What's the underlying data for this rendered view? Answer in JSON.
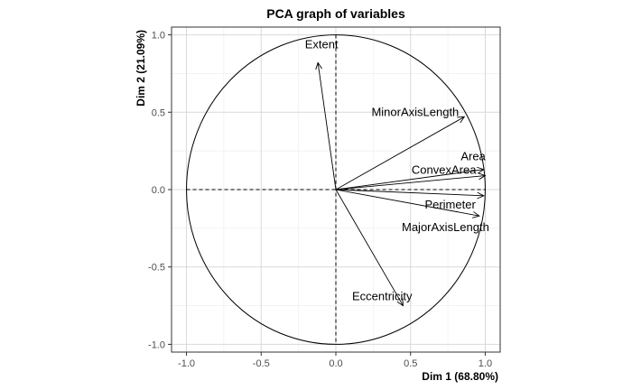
{
  "chart_data": {
    "type": "scatter",
    "title": "PCA graph of variables",
    "xlabel": "Dim 1 (68.80%)",
    "ylabel": "Dim 2 (21.09%)",
    "xlim": [
      -1.1,
      1.1
    ],
    "ylim": [
      -1.05,
      1.05
    ],
    "x_ticks": [
      -1.0,
      -0.5,
      0.0,
      0.5,
      1.0
    ],
    "y_ticks": [
      -1.0,
      -0.5,
      0.0,
      0.5,
      1.0
    ],
    "x_tick_labels": [
      "-1.0",
      "-0.5",
      "0.0",
      "0.5",
      "1.0"
    ],
    "y_tick_labels": [
      "-1.0",
      "-0.5",
      "0.0",
      "0.5",
      "1.0"
    ],
    "grid": true,
    "unit_circle": true,
    "variables": [
      {
        "name": "Extent",
        "x": -0.12,
        "y": 0.82
      },
      {
        "name": "MinorAxisLength",
        "x": 0.86,
        "y": 0.47
      },
      {
        "name": "Area",
        "x": 0.99,
        "y": 0.13
      },
      {
        "name": "ConvexArea",
        "x": 1.0,
        "y": 0.09
      },
      {
        "name": "Perimeter",
        "x": 0.99,
        "y": -0.04
      },
      {
        "name": "MajorAxisLength",
        "x": 0.96,
        "y": -0.17
      },
      {
        "name": "Eccentricity",
        "x": 0.45,
        "y": -0.75
      }
    ],
    "colors": {
      "panel_border": "#333333",
      "grid_major": "#d9d9d9",
      "grid_minor": "#ececec",
      "arrow": "#000000",
      "tick_label": "#4d4d4d"
    }
  }
}
